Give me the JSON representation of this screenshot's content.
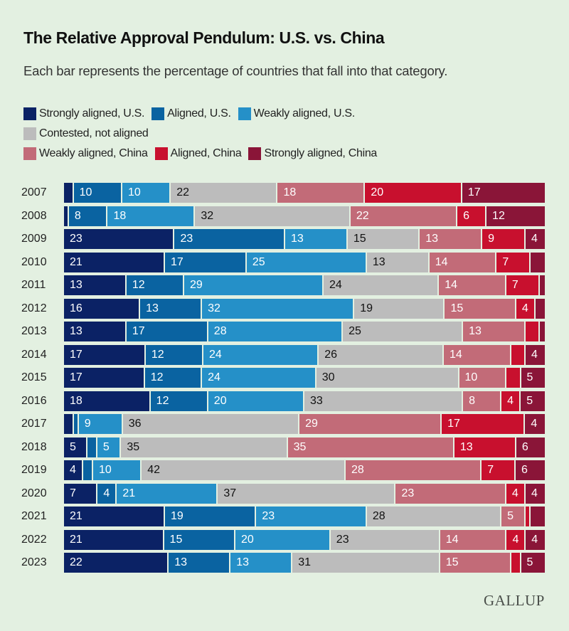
{
  "title": "The Relative Approval Pendulum: U.S. vs. China",
  "subtitle": "Each bar represents the percentage of countries that fall into that category.",
  "logo": "GALLUP",
  "chart_data": {
    "type": "bar",
    "orientation": "horizontal",
    "stacked": true,
    "legend_position": "top",
    "grid": false,
    "categories": [
      "2007",
      "2008",
      "2009",
      "2010",
      "2011",
      "2012",
      "2013",
      "2014",
      "2015",
      "2016",
      "2017",
      "2018",
      "2019",
      "2020",
      "2021",
      "2022",
      "2023"
    ],
    "series": [
      {
        "name": "Strongly aligned, U.S.",
        "color": "#0b2265",
        "values": [
          2,
          1,
          23,
          21,
          13,
          16,
          13,
          17,
          17,
          18,
          2,
          5,
          4,
          7,
          21,
          21,
          22
        ]
      },
      {
        "name": "Aligned, U.S.",
        "color": "#0a63a1",
        "values": [
          10,
          8,
          23,
          17,
          12,
          13,
          17,
          12,
          12,
          12,
          1,
          2,
          2,
          4,
          19,
          15,
          13
        ]
      },
      {
        "name": "Weakly aligned, U.S.",
        "color": "#2590c8",
        "values": [
          10,
          18,
          13,
          25,
          29,
          32,
          28,
          24,
          24,
          20,
          9,
          5,
          10,
          21,
          23,
          20,
          13
        ]
      },
      {
        "name": "Contested, not aligned",
        "color": "#bcbcbc",
        "values": [
          22,
          32,
          15,
          13,
          24,
          19,
          25,
          26,
          30,
          33,
          36,
          35,
          42,
          37,
          28,
          23,
          31
        ]
      },
      {
        "name": "Weakly aligned, China",
        "color": "#c26b78",
        "values": [
          18,
          22,
          13,
          14,
          14,
          15,
          13,
          14,
          10,
          8,
          29,
          35,
          28,
          23,
          5,
          14,
          15
        ]
      },
      {
        "name": "Aligned, China",
        "color": "#c8102e",
        "values": [
          20,
          6,
          9,
          7,
          7,
          4,
          3,
          3,
          3,
          4,
          17,
          13,
          7,
          4,
          1,
          4,
          2
        ]
      },
      {
        "name": "Strongly aligned, China",
        "color": "#8a1538",
        "values": [
          17,
          12,
          4,
          3,
          1,
          2,
          1,
          4,
          5,
          5,
          4,
          6,
          6,
          4,
          3,
          4,
          5
        ]
      }
    ]
  }
}
